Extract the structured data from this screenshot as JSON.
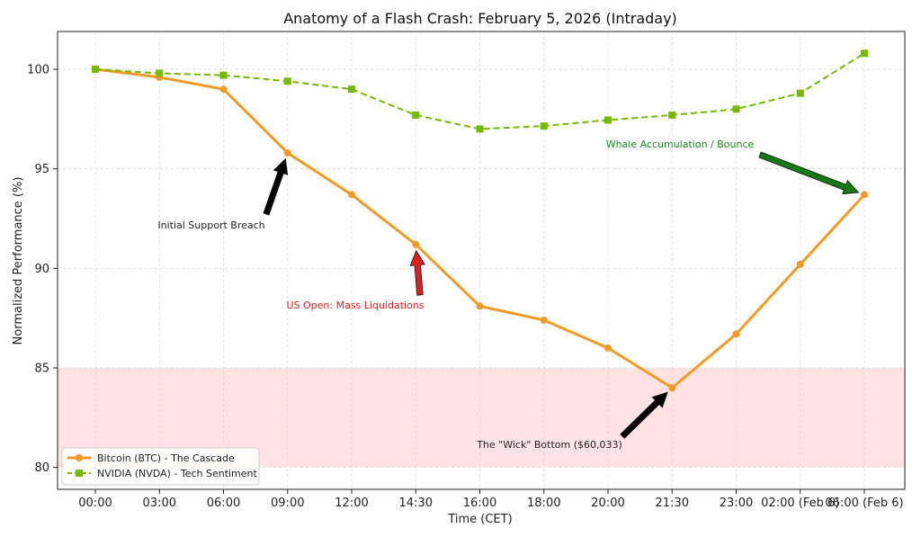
{
  "chart_data": {
    "type": "line",
    "title": "Anatomy of a Flash Crash: February 5, 2026 (Intraday)",
    "xlabel": "Time (CET)",
    "ylabel": "Normalized Performance (%)",
    "categories": [
      "00:00",
      "03:00",
      "06:00",
      "09:00",
      "12:00",
      "14:30",
      "16:00",
      "18:00",
      "20:00",
      "21:30",
      "23:00",
      "02:00 (Feb 6)",
      "06:00 (Feb 6)"
    ],
    "ylim": [
      78.9,
      101.9
    ],
    "yticks": [
      80,
      85,
      90,
      95,
      100
    ],
    "grid": true,
    "legend_position": "lower-left",
    "shaded_band": {
      "y_from": 80,
      "y_to": 85,
      "color": "#ffe3e3"
    },
    "series": [
      {
        "name": "Bitcoin (BTC) - The Cascade",
        "color": "#f39a26",
        "style": "solid",
        "marker": "circle",
        "values": [
          100,
          99.6,
          99.0,
          95.8,
          93.7,
          91.2,
          88.1,
          87.4,
          86.0,
          84.0,
          86.7,
          90.2,
          93.7
        ]
      },
      {
        "name": "NVIDIA (NVDA) - Tech Sentiment",
        "color": "#76b900",
        "style": "dashed",
        "marker": "square",
        "values": [
          100,
          99.8,
          99.7,
          99.4,
          99.0,
          97.7,
          97.0,
          97.15,
          97.45,
          97.7,
          98.0,
          98.8,
          100.8
        ]
      }
    ],
    "annotations": [
      {
        "text": "Initial Support Breach",
        "color": "#222222",
        "arrow_color": "#000000",
        "target_index": 3,
        "target_series": 0
      },
      {
        "text": "US Open: Mass Liquidations",
        "color": "#e0201f",
        "arrow_color": "#e0201f",
        "target_index": 5,
        "target_series": 0
      },
      {
        "text": "The \"Wick\" Bottom ($60,033)",
        "color": "#222222",
        "arrow_color": "#000000",
        "target_index": 9,
        "target_series": 0
      },
      {
        "text": "Whale Accumulation / Bounce",
        "color": "#1a8a1a",
        "arrow_color": "#137a13",
        "target_index": 12,
        "target_series": 0
      }
    ]
  }
}
